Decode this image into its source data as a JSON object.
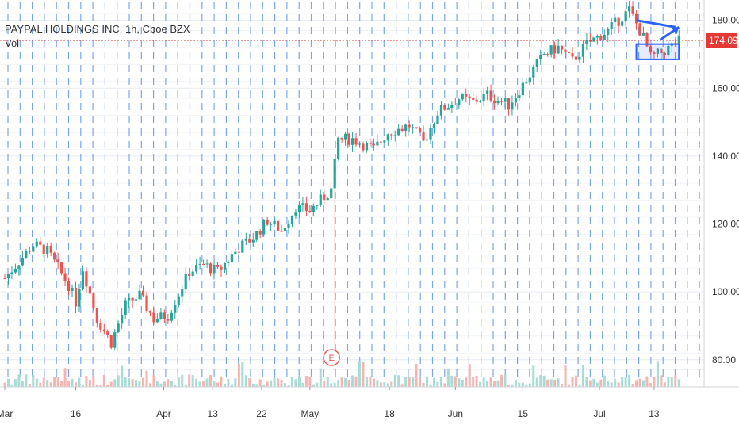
{
  "legend": {
    "symbol": "PAYPAL HOLDINGS INC, 1h, Cboe BZX",
    "volume_label": "Vol"
  },
  "colors": {
    "up": "#26a69a",
    "down": "#ef5350",
    "vol_up": "#a8dcd5",
    "vol_down": "#f5b5b3",
    "grid": "#e6ebf2",
    "annotation": "#2962ff",
    "last_price": "#e53935",
    "axis_text": "#333333"
  },
  "chart_data": {
    "type": "candlestick",
    "title": "PAYPAL HOLDINGS INC, 1h, Cboe BZX",
    "xlabel": "",
    "ylabel": "",
    "ylim": [
      72,
      186
    ],
    "y_ticks": [
      80,
      100,
      120,
      140,
      160,
      180
    ],
    "y_tick_labels": [
      "80.00",
      "100.00",
      "120.00",
      "140.00",
      "160.00",
      "180.00"
    ],
    "x_tick_labels": [
      "Mar",
      "16",
      "Apr",
      "13",
      "22",
      "May",
      "18",
      "Jun",
      "15",
      "Jul",
      "13"
    ],
    "last_price": 174.09,
    "last_price_label": "174.09",
    "grid": true,
    "earnings_marker": "E",
    "price_path": [
      {
        "d": 0,
        "p": 104
      },
      {
        "d": 4,
        "p": 114
      },
      {
        "d": 6,
        "p": 112
      },
      {
        "d": 9,
        "p": 102
      },
      {
        "d": 10,
        "p": 97
      },
      {
        "d": 11,
        "p": 107
      },
      {
        "d": 13,
        "p": 92
      },
      {
        "d": 15,
        "p": 85
      },
      {
        "d": 17,
        "p": 96
      },
      {
        "d": 19,
        "p": 99
      },
      {
        "d": 21,
        "p": 92
      },
      {
        "d": 23,
        "p": 93
      },
      {
        "d": 26,
        "p": 106
      },
      {
        "d": 28,
        "p": 108
      },
      {
        "d": 30,
        "p": 106
      },
      {
        "d": 33,
        "p": 113
      },
      {
        "d": 35,
        "p": 116
      },
      {
        "d": 37,
        "p": 121
      },
      {
        "d": 39,
        "p": 118
      },
      {
        "d": 41,
        "p": 125
      },
      {
        "d": 43,
        "p": 124
      },
      {
        "d": 46,
        "p": 130
      },
      {
        "d": 47,
        "p": 145
      },
      {
        "d": 49,
        "p": 145
      },
      {
        "d": 52,
        "p": 142
      },
      {
        "d": 54,
        "p": 147
      },
      {
        "d": 57,
        "p": 149
      },
      {
        "d": 59,
        "p": 144
      },
      {
        "d": 61,
        "p": 153
      },
      {
        "d": 64,
        "p": 157
      },
      {
        "d": 66,
        "p": 156
      },
      {
        "d": 68,
        "p": 158
      },
      {
        "d": 71,
        "p": 155
      },
      {
        "d": 73,
        "p": 161
      },
      {
        "d": 76,
        "p": 170
      },
      {
        "d": 78,
        "p": 172
      },
      {
        "d": 80,
        "p": 168
      },
      {
        "d": 82,
        "p": 173
      },
      {
        "d": 85,
        "p": 177
      },
      {
        "d": 88,
        "p": 183
      },
      {
        "d": 90,
        "p": 175
      },
      {
        "d": 91,
        "p": 169
      },
      {
        "d": 93,
        "p": 171
      },
      {
        "d": 95,
        "p": 174
      }
    ],
    "annotations": [
      {
        "type": "trend-line",
        "from": {
          "d": 89,
          "p": 180
        },
        "to": {
          "d": 94.5,
          "p": 178
        }
      },
      {
        "type": "arrow",
        "from": {
          "d": 89,
          "p": 180
        },
        "to": {
          "d": 95,
          "p": 178
        }
      },
      {
        "type": "rectangle",
        "d0": 89,
        "d1": 95,
        "p0": 168.5,
        "p1": 173
      }
    ]
  }
}
